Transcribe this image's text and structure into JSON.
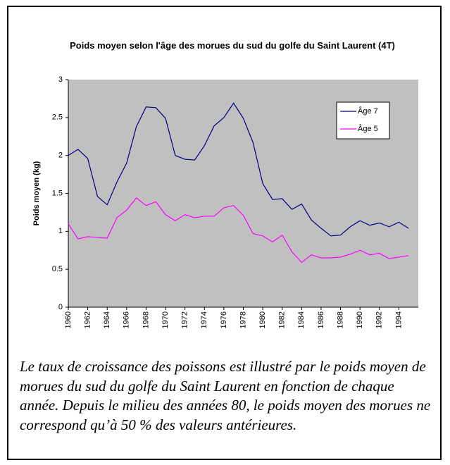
{
  "chart_data": {
    "type": "line",
    "title": "Poids moyen selon l'âge des morues du sud du golfe du Saint Laurent (4T)",
    "y_label": "Poids moyen (kg)",
    "x": [
      1960,
      1961,
      1962,
      1963,
      1964,
      1965,
      1966,
      1967,
      1968,
      1969,
      1970,
      1971,
      1972,
      1973,
      1974,
      1975,
      1976,
      1977,
      1978,
      1979,
      1980,
      1981,
      1982,
      1983,
      1984,
      1985,
      1986,
      1987,
      1988,
      1989,
      1990,
      1991,
      1992,
      1993,
      1994,
      1995
    ],
    "series": [
      {
        "name": "Âge 7",
        "color": "#000080",
        "values": [
          2.0,
          2.08,
          1.96,
          1.46,
          1.35,
          1.65,
          1.9,
          2.38,
          2.64,
          2.63,
          2.49,
          2.0,
          1.95,
          1.94,
          2.13,
          2.39,
          2.5,
          2.69,
          2.49,
          2.17,
          1.63,
          1.42,
          1.43,
          1.29,
          1.36,
          1.15,
          1.04,
          0.94,
          0.95,
          1.06,
          1.14,
          1.08,
          1.11,
          1.06,
          1.12,
          1.04
        ]
      },
      {
        "name": "Âge 5",
        "color": "#ff00ff",
        "values": [
          1.1,
          0.9,
          0.93,
          0.92,
          0.91,
          1.18,
          1.28,
          1.44,
          1.34,
          1.39,
          1.22,
          1.14,
          1.22,
          1.18,
          1.2,
          1.2,
          1.31,
          1.34,
          1.21,
          0.97,
          0.94,
          0.86,
          0.95,
          0.73,
          0.59,
          0.69,
          0.65,
          0.65,
          0.66,
          0.7,
          0.75,
          0.69,
          0.71,
          0.64,
          0.66,
          0.68
        ]
      }
    ],
    "xlim": [
      1960,
      1996
    ],
    "xticks": [
      1960,
      1962,
      1964,
      1966,
      1968,
      1970,
      1972,
      1974,
      1976,
      1978,
      1980,
      1982,
      1984,
      1986,
      1988,
      1990,
      1992,
      1994
    ],
    "ylim": [
      0,
      3
    ],
    "yticks": [
      0,
      0.5,
      1,
      1.5,
      2,
      2.5,
      3
    ],
    "plot_background": "#c0c0c0",
    "grid": false,
    "legend": "upper right"
  },
  "caption": "Le taux de croissance des poissons est illustré par le poids moyen de morues du sud du golfe du Saint Laurent en fonction de chaque année. Depuis le milieu des années 80, le poids moyen des morues ne correspond qu’à 50 % des valeurs antérieures."
}
